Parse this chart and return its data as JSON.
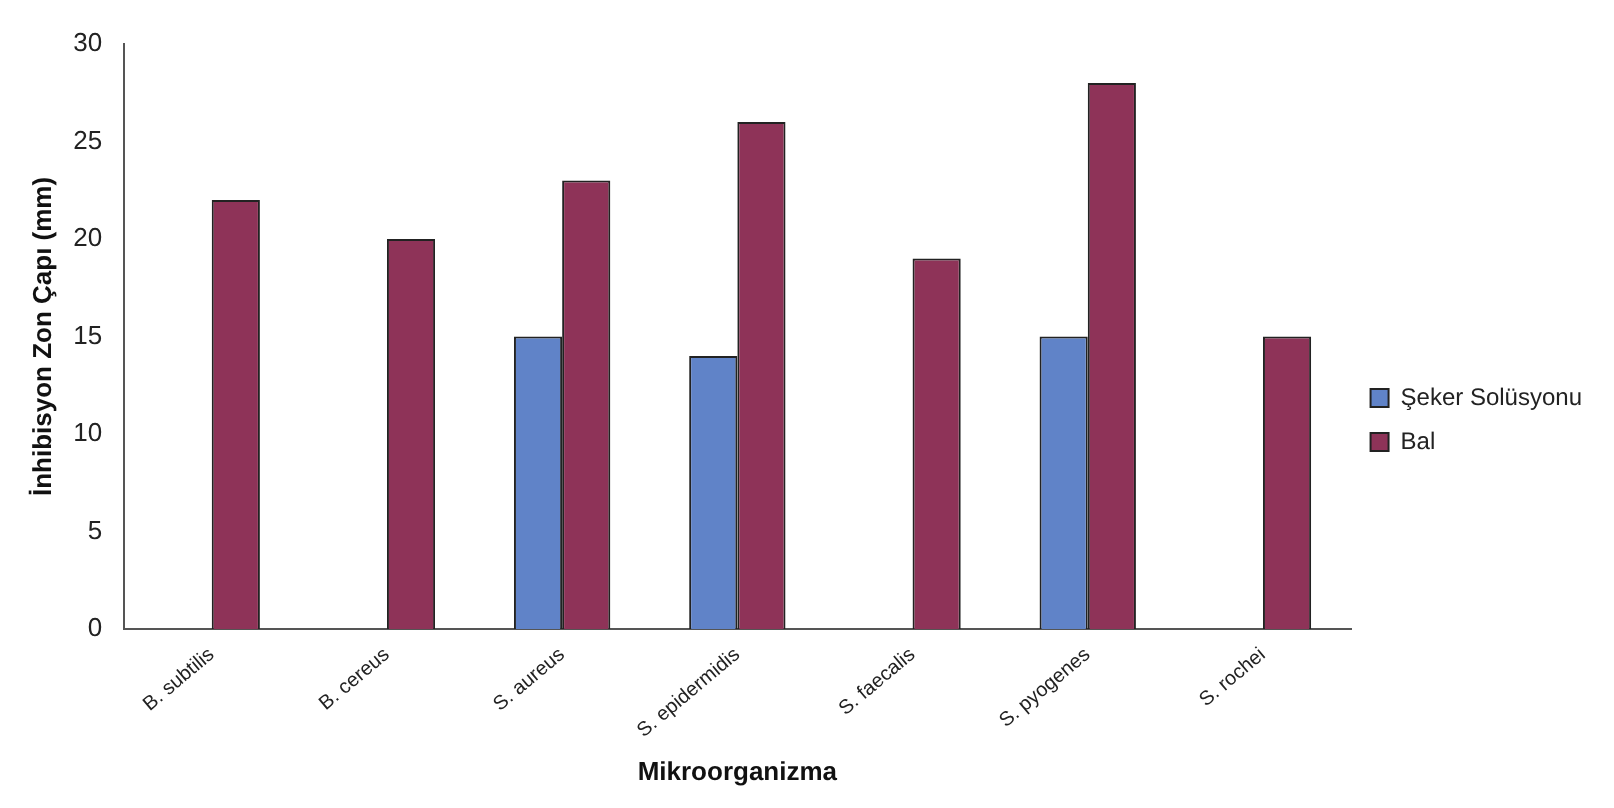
{
  "chart_data": {
    "type": "bar",
    "xlabel": "Mikroorganizma",
    "ylabel": "İnhibisyon Zon Çapı (mm)",
    "categories": [
      "B. subtilis",
      "B. cereus",
      "S. aureus",
      "S. epidermidis",
      "S. faecalis",
      "S. pyogenes",
      "S. rochei"
    ],
    "series": [
      {
        "name": "Şeker Solüsyonu",
        "color": "#6083c8",
        "values": [
          null,
          null,
          15,
          14,
          null,
          15,
          null
        ]
      },
      {
        "name": "Bal",
        "color": "#8e3358",
        "values": [
          22,
          20,
          23,
          26,
          19,
          28,
          15
        ]
      }
    ],
    "ylim": [
      0,
      30
    ],
    "yticks": [
      0,
      5,
      10,
      15,
      20,
      25,
      30
    ],
    "grid": false,
    "legend": "right"
  }
}
